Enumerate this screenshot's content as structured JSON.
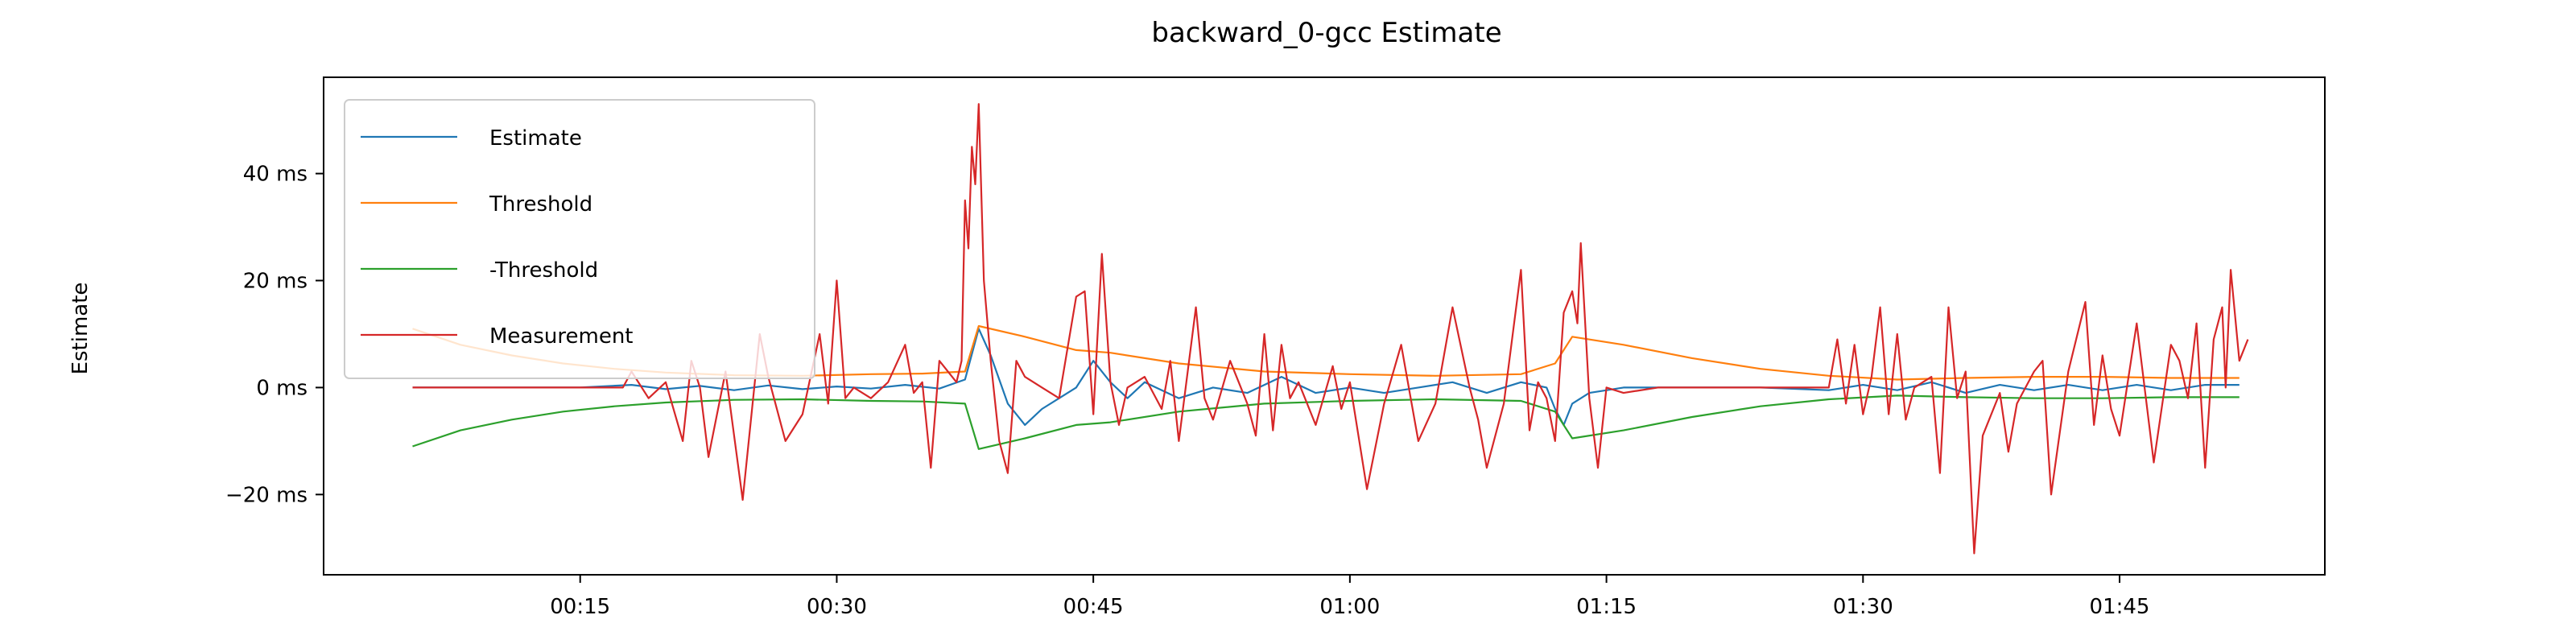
{
  "chart_data": {
    "type": "line",
    "title": "backward_0-gcc Estimate",
    "xlabel": "",
    "ylabel": "Estimate",
    "x_ticks": [
      "00:15",
      "00:30",
      "00:45",
      "01:00",
      "01:15",
      "01:30",
      "01:45"
    ],
    "x_tick_seconds": [
      15,
      30,
      45,
      60,
      75,
      90,
      105
    ],
    "xlim_seconds": [
      0,
      117
    ],
    "y_ticks": [
      "−20 ms",
      "0 ms",
      "20 ms",
      "40 ms"
    ],
    "y_tick_values": [
      -20,
      0,
      20,
      40
    ],
    "ylim": [
      -35,
      58
    ],
    "legend_position": "upper-left",
    "grid": false,
    "series": [
      {
        "name": "Estimate",
        "color": "#1f77b4",
        "points": [
          [
            5.2,
            0
          ],
          [
            10,
            0
          ],
          [
            15,
            0
          ],
          [
            18,
            0.5
          ],
          [
            20,
            -0.3
          ],
          [
            22,
            0.3
          ],
          [
            24,
            -0.5
          ],
          [
            26,
            0.4
          ],
          [
            28,
            -0.3
          ],
          [
            30,
            0.2
          ],
          [
            32,
            -0.2
          ],
          [
            34,
            0.5
          ],
          [
            36,
            -0.2
          ],
          [
            37.5,
            1.5
          ],
          [
            38.3,
            11
          ],
          [
            39,
            6
          ],
          [
            40,
            -3
          ],
          [
            41,
            -7
          ],
          [
            42,
            -4
          ],
          [
            43,
            -2
          ],
          [
            44,
            0
          ],
          [
            45,
            5
          ],
          [
            46,
            1
          ],
          [
            47,
            -2
          ],
          [
            48,
            1
          ],
          [
            50,
            -2
          ],
          [
            52,
            0
          ],
          [
            54,
            -1
          ],
          [
            56,
            2
          ],
          [
            58,
            -1
          ],
          [
            60,
            0
          ],
          [
            62,
            -1
          ],
          [
            64,
            0
          ],
          [
            66,
            1
          ],
          [
            68,
            -1
          ],
          [
            70,
            1
          ],
          [
            71.5,
            0
          ],
          [
            72,
            -4
          ],
          [
            72.5,
            -7
          ],
          [
            73,
            -3
          ],
          [
            74,
            -1
          ],
          [
            76,
            0
          ],
          [
            80,
            0
          ],
          [
            84,
            0
          ],
          [
            88,
            -0.5
          ],
          [
            90,
            0.5
          ],
          [
            92,
            -0.5
          ],
          [
            94,
            1
          ],
          [
            96,
            -1
          ],
          [
            98,
            0.5
          ],
          [
            100,
            -0.5
          ],
          [
            102,
            0.5
          ],
          [
            104,
            -0.5
          ],
          [
            106,
            0.5
          ],
          [
            108,
            -0.5
          ],
          [
            110,
            0.5
          ],
          [
            112,
            0.5
          ]
        ]
      },
      {
        "name": "Threshold",
        "color": "#ff7f0e",
        "points": [
          [
            5.2,
            11
          ],
          [
            8,
            8
          ],
          [
            11,
            6
          ],
          [
            14,
            4.5
          ],
          [
            17,
            3.5
          ],
          [
            20,
            2.8
          ],
          [
            24,
            2.3
          ],
          [
            28,
            2.2
          ],
          [
            32,
            2.5
          ],
          [
            35,
            2.6
          ],
          [
            37.5,
            3
          ],
          [
            38.3,
            11.5
          ],
          [
            41,
            9.5
          ],
          [
            44,
            7
          ],
          [
            46,
            6.5
          ],
          [
            50,
            4.5
          ],
          [
            55,
            3
          ],
          [
            60,
            2.5
          ],
          [
            65,
            2.2
          ],
          [
            70,
            2.5
          ],
          [
            72,
            4.5
          ],
          [
            73,
            9.5
          ],
          [
            76,
            8
          ],
          [
            80,
            5.5
          ],
          [
            84,
            3.5
          ],
          [
            88,
            2.2
          ],
          [
            92,
            1.5
          ],
          [
            96,
            1.8
          ],
          [
            100,
            2
          ],
          [
            104,
            2
          ],
          [
            108,
            1.8
          ],
          [
            112,
            1.8
          ]
        ]
      },
      {
        "name": "-Threshold",
        "color": "#2ca02c",
        "points": [
          [
            5.2,
            -11
          ],
          [
            8,
            -8
          ],
          [
            11,
            -6
          ],
          [
            14,
            -4.5
          ],
          [
            17,
            -3.5
          ],
          [
            20,
            -2.8
          ],
          [
            24,
            -2.3
          ],
          [
            28,
            -2.2
          ],
          [
            32,
            -2.5
          ],
          [
            35,
            -2.6
          ],
          [
            37.5,
            -3
          ],
          [
            38.3,
            -11.5
          ],
          [
            41,
            -9.5
          ],
          [
            44,
            -7
          ],
          [
            46,
            -6.5
          ],
          [
            50,
            -4.5
          ],
          [
            55,
            -3
          ],
          [
            60,
            -2.5
          ],
          [
            65,
            -2.2
          ],
          [
            70,
            -2.5
          ],
          [
            72,
            -4.5
          ],
          [
            73,
            -9.5
          ],
          [
            76,
            -8
          ],
          [
            80,
            -5.5
          ],
          [
            84,
            -3.5
          ],
          [
            88,
            -2.2
          ],
          [
            92,
            -1.5
          ],
          [
            96,
            -1.8
          ],
          [
            100,
            -2
          ],
          [
            104,
            -2
          ],
          [
            108,
            -1.8
          ],
          [
            112,
            -1.8
          ]
        ]
      },
      {
        "name": "Measurement",
        "color": "#d62728",
        "points": [
          [
            5.2,
            0
          ],
          [
            10,
            0
          ],
          [
            15,
            0
          ],
          [
            17.5,
            0
          ],
          [
            18,
            3
          ],
          [
            19,
            -2
          ],
          [
            20,
            1
          ],
          [
            21,
            -10
          ],
          [
            21.5,
            5
          ],
          [
            22,
            0
          ],
          [
            22.5,
            -13
          ],
          [
            23.5,
            3
          ],
          [
            24.5,
            -21
          ],
          [
            25.5,
            10
          ],
          [
            26,
            2
          ],
          [
            27,
            -10
          ],
          [
            28,
            -5
          ],
          [
            29,
            10
          ],
          [
            29.5,
            -3
          ],
          [
            30,
            20
          ],
          [
            30.5,
            -2
          ],
          [
            31,
            0
          ],
          [
            32,
            -2
          ],
          [
            33,
            1
          ],
          [
            34,
            8
          ],
          [
            34.5,
            -1
          ],
          [
            35,
            1
          ],
          [
            35.5,
            -15
          ],
          [
            36,
            5
          ],
          [
            37,
            1
          ],
          [
            37.3,
            5
          ],
          [
            37.5,
            35
          ],
          [
            37.7,
            26
          ],
          [
            37.9,
            45
          ],
          [
            38.1,
            38
          ],
          [
            38.3,
            53
          ],
          [
            38.6,
            20
          ],
          [
            39,
            5
          ],
          [
            39.5,
            -10
          ],
          [
            40,
            -16
          ],
          [
            40.5,
            5
          ],
          [
            41,
            2
          ],
          [
            42,
            0
          ],
          [
            43,
            -2
          ],
          [
            44,
            17
          ],
          [
            44.5,
            18
          ],
          [
            45,
            -5
          ],
          [
            45.5,
            25
          ],
          [
            46,
            1
          ],
          [
            46.5,
            -7
          ],
          [
            47,
            0
          ],
          [
            48,
            2
          ],
          [
            49,
            -4
          ],
          [
            49.5,
            5
          ],
          [
            50,
            -10
          ],
          [
            51,
            15
          ],
          [
            51.5,
            -2
          ],
          [
            52,
            -6
          ],
          [
            53,
            5
          ],
          [
            53.5,
            1
          ],
          [
            54,
            -3
          ],
          [
            54.5,
            -9
          ],
          [
            55,
            10
          ],
          [
            55.5,
            -8
          ],
          [
            56,
            8
          ],
          [
            56.5,
            -2
          ],
          [
            57,
            1
          ],
          [
            58,
            -7
          ],
          [
            59,
            4
          ],
          [
            59.5,
            -4
          ],
          [
            60,
            1
          ],
          [
            61,
            -19
          ],
          [
            62,
            -3
          ],
          [
            63,
            8
          ],
          [
            64,
            -10
          ],
          [
            65,
            -3
          ],
          [
            66,
            15
          ],
          [
            67,
            0
          ],
          [
            67.5,
            -6
          ],
          [
            68,
            -15
          ],
          [
            69,
            -3
          ],
          [
            70,
            22
          ],
          [
            70.5,
            -8
          ],
          [
            71,
            1
          ],
          [
            71.5,
            -2
          ],
          [
            72,
            -10
          ],
          [
            72.5,
            14
          ],
          [
            73,
            18
          ],
          [
            73.3,
            12
          ],
          [
            73.5,
            27
          ],
          [
            74,
            -2
          ],
          [
            74.5,
            -15
          ],
          [
            75,
            0
          ],
          [
            76,
            -1
          ],
          [
            78,
            0
          ],
          [
            80,
            0
          ],
          [
            82,
            0
          ],
          [
            84,
            0
          ],
          [
            86,
            0
          ],
          [
            88,
            0
          ],
          [
            88.5,
            9
          ],
          [
            89,
            -3
          ],
          [
            89.5,
            8
          ],
          [
            90,
            -5
          ],
          [
            90.5,
            2
          ],
          [
            91,
            15
          ],
          [
            91.5,
            -5
          ],
          [
            92,
            10
          ],
          [
            92.5,
            -6
          ],
          [
            93,
            0
          ],
          [
            94,
            2
          ],
          [
            94.5,
            -16
          ],
          [
            95,
            15
          ],
          [
            95.5,
            -2
          ],
          [
            96,
            3
          ],
          [
            96.5,
            -31
          ],
          [
            97,
            -9
          ],
          [
            98,
            -1
          ],
          [
            98.5,
            -12
          ],
          [
            99,
            -3
          ],
          [
            100,
            3
          ],
          [
            100.5,
            5
          ],
          [
            101,
            -20
          ],
          [
            102,
            3
          ],
          [
            103,
            16
          ],
          [
            103.5,
            -7
          ],
          [
            104,
            6
          ],
          [
            104.5,
            -4
          ],
          [
            105,
            -9
          ],
          [
            106,
            12
          ],
          [
            106.5,
            -1
          ],
          [
            107,
            -14
          ],
          [
            108,
            8
          ],
          [
            108.5,
            5
          ],
          [
            109,
            -2
          ],
          [
            109.5,
            12
          ],
          [
            110,
            -15
          ],
          [
            110.5,
            9
          ],
          [
            111,
            15
          ],
          [
            111.2,
            0
          ],
          [
            111.5,
            22
          ],
          [
            112,
            5
          ],
          [
            112.5,
            9
          ]
        ]
      }
    ]
  }
}
